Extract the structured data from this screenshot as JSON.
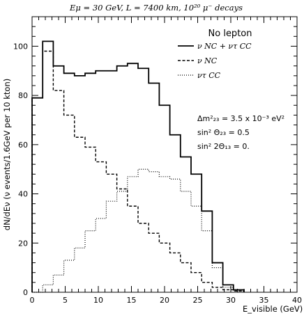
{
  "chart_data": {
    "type": "line",
    "title": "Eμ = 30 GeV, L = 7400 km, 10²⁰ μ⁻ decays",
    "xlabel": "E_visible (GeV)",
    "ylabel": "dN/dEν (ν events/1.6GeV per 10 kton)",
    "xlim": [
      0,
      40
    ],
    "ylim": [
      0,
      112
    ],
    "x_ticks": [
      "0",
      "5",
      "10",
      "15",
      "20",
      "25",
      "30",
      "35",
      "40"
    ],
    "y_ticks": [
      "0",
      "20",
      "40",
      "60",
      "80",
      "100"
    ],
    "legend_title": "No lepton",
    "legend_position": "top-right",
    "bin_edges": [
      0,
      1.6,
      3.2,
      4.8,
      6.4,
      8.0,
      9.6,
      11.2,
      12.8,
      14.4,
      16.0,
      17.6,
      19.2,
      20.8,
      22.4,
      24.0,
      25.6,
      27.2,
      28.8,
      30.4,
      32.0
    ],
    "series": [
      {
        "name": "ν NC + ντ CC",
        "style": "solid",
        "values": [
          79,
          102,
          92,
          89,
          88,
          89,
          90,
          90,
          92,
          93,
          91,
          85,
          76,
          64,
          55,
          48,
          33,
          12,
          3,
          1
        ]
      },
      {
        "name": "ν NC",
        "style": "dashed",
        "values": [
          79,
          98,
          82,
          72,
          63,
          59,
          53,
          48,
          42,
          35,
          28,
          24,
          20,
          16,
          12,
          8,
          4,
          2,
          1,
          0.5
        ]
      },
      {
        "name": "ντ CC",
        "style": "dotted",
        "values": [
          0,
          3,
          7,
          13,
          18,
          25,
          30,
          37,
          41,
          47,
          50,
          49,
          47,
          46,
          41,
          35,
          25,
          10,
          2,
          0.5
        ]
      }
    ],
    "annotations": [
      "Δm²₂₃ = 3.5 x 10⁻³ eV²",
      "sin² Θ₂₃ = 0.5",
      "sin² 2Θ₁₃ = 0."
    ]
  }
}
